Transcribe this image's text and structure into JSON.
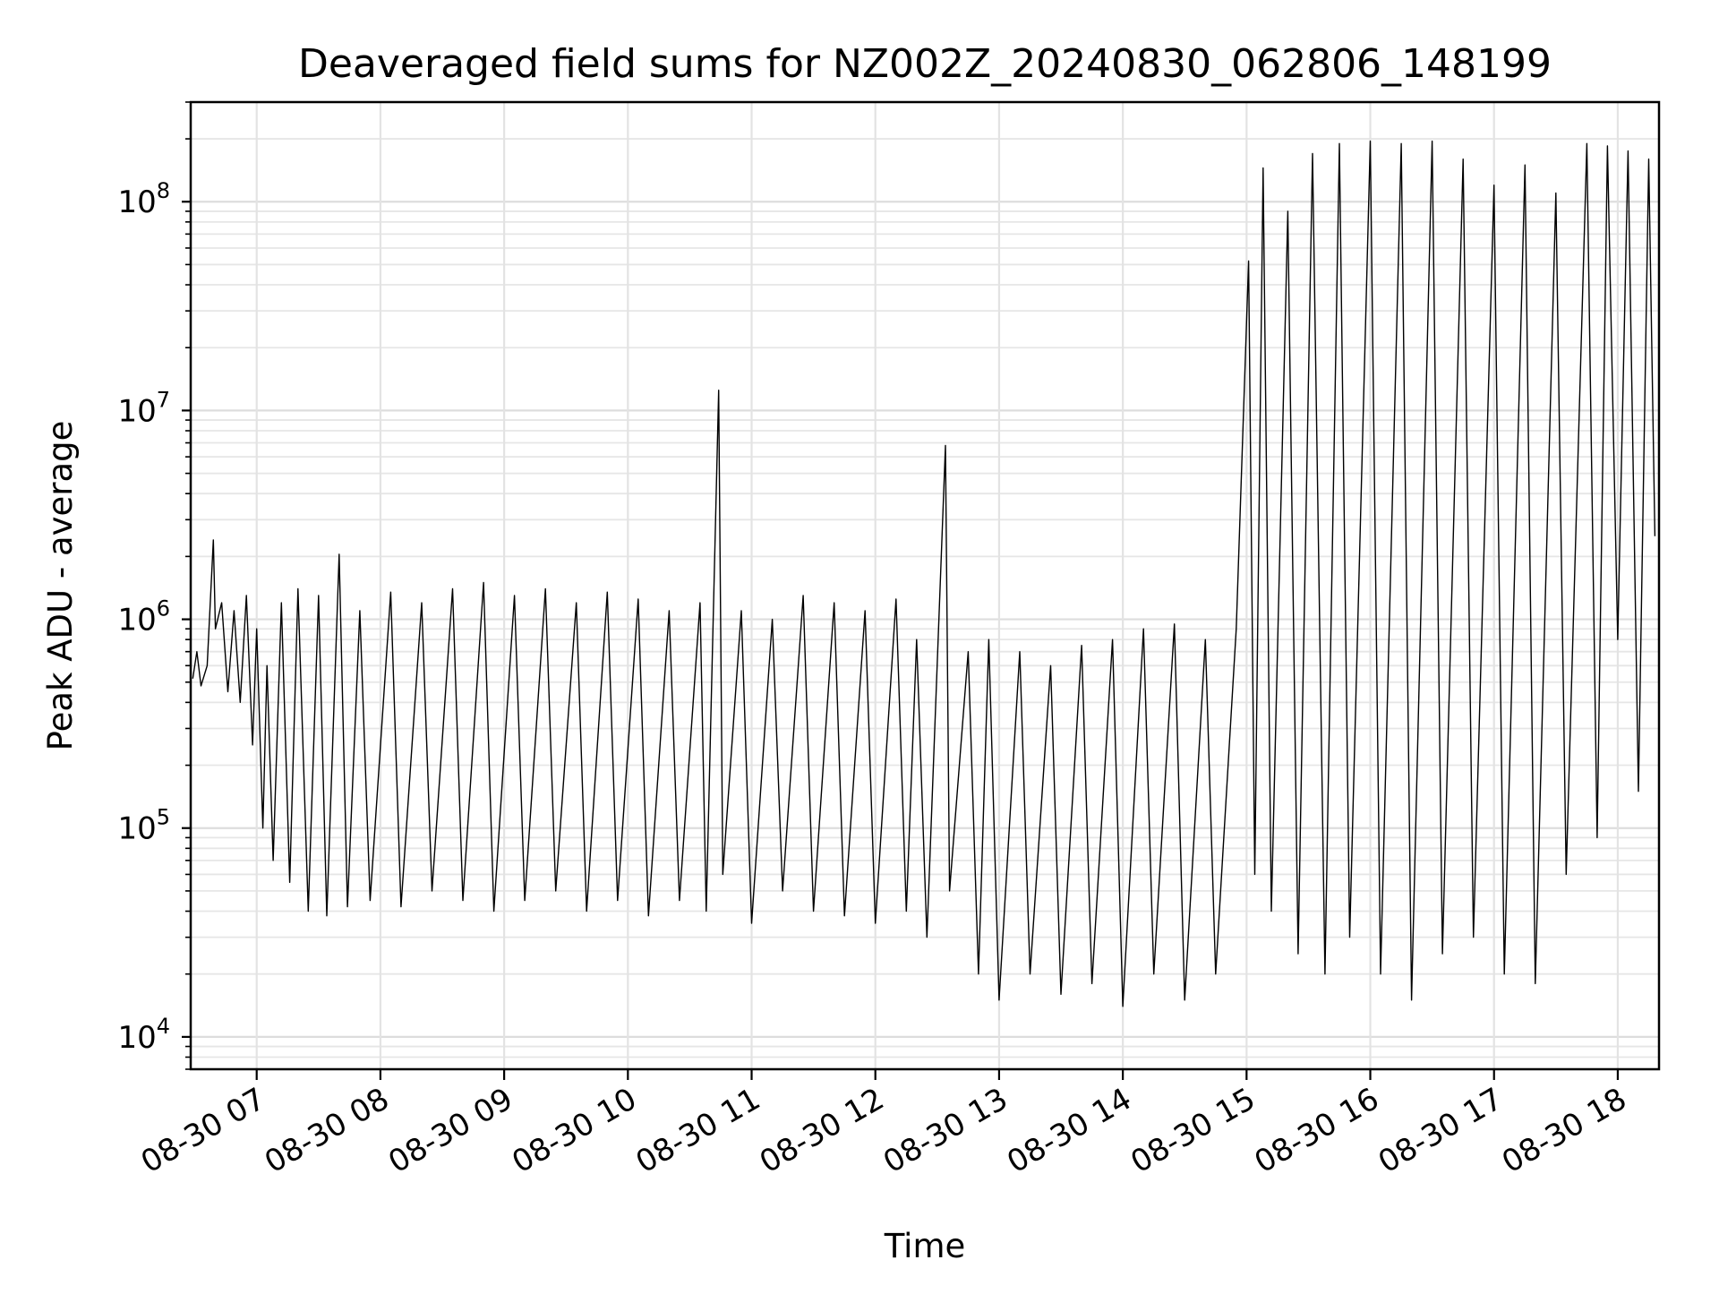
{
  "chart_data": {
    "type": "line",
    "title": "Deaveraged field sums for NZ002Z_20240830_062806_148199",
    "xlabel": "Time",
    "ylabel": "Peak ADU - average",
    "y_scale": "log",
    "grid": true,
    "x_range": [
      "08-30 06:28",
      "08-30 18:20"
    ],
    "ylim": [
      7000,
      300000000
    ],
    "x_ticks": [
      "08-30 07",
      "08-30 08",
      "08-30 09",
      "08-30 10",
      "08-30 11",
      "08-30 12",
      "08-30 13",
      "08-30 14",
      "08-30 15",
      "08-30 16",
      "08-30 17",
      "08-30 18"
    ],
    "y_ticks": [
      {
        "base": "10",
        "exp": "4"
      },
      {
        "base": "10",
        "exp": "5"
      },
      {
        "base": "10",
        "exp": "6"
      },
      {
        "base": "10",
        "exp": "7"
      },
      {
        "base": "10",
        "exp": "8"
      }
    ],
    "series": [
      {
        "color": "#000000",
        "points": [
          [
            "06:29",
            520000
          ],
          [
            "06:31",
            700000
          ],
          [
            "06:33",
            480000
          ],
          [
            "06:36",
            600000
          ],
          [
            "06:39",
            2400000
          ],
          [
            "06:40",
            900000
          ],
          [
            "06:43",
            1200000
          ],
          [
            "06:46",
            450000
          ],
          [
            "06:49",
            1100000
          ],
          [
            "06:52",
            400000
          ],
          [
            "06:55",
            1300000
          ],
          [
            "06:58",
            250000
          ],
          [
            "07:00",
            900000
          ],
          [
            "07:03",
            100000
          ],
          [
            "07:05",
            600000
          ],
          [
            "07:08",
            70000
          ],
          [
            "07:12",
            1200000
          ],
          [
            "07:16",
            55000
          ],
          [
            "07:20",
            1400000
          ],
          [
            "07:25",
            40000
          ],
          [
            "07:30",
            1300000
          ],
          [
            "07:34",
            38000
          ],
          [
            "07:40",
            2050000
          ],
          [
            "07:44",
            42000
          ],
          [
            "07:50",
            1100000
          ],
          [
            "07:55",
            45000
          ],
          [
            "08:05",
            1350000
          ],
          [
            "08:10",
            42000
          ],
          [
            "08:20",
            1200000
          ],
          [
            "08:25",
            50000
          ],
          [
            "08:35",
            1400000
          ],
          [
            "08:40",
            45000
          ],
          [
            "08:50",
            1500000
          ],
          [
            "08:55",
            40000
          ],
          [
            "09:05",
            1300000
          ],
          [
            "09:10",
            45000
          ],
          [
            "09:20",
            1400000
          ],
          [
            "09:25",
            50000
          ],
          [
            "09:35",
            1200000
          ],
          [
            "09:40",
            40000
          ],
          [
            "09:50",
            1350000
          ],
          [
            "09:55",
            45000
          ],
          [
            "10:05",
            1250000
          ],
          [
            "10:10",
            38000
          ],
          [
            "10:20",
            1100000
          ],
          [
            "10:25",
            45000
          ],
          [
            "10:35",
            1200000
          ],
          [
            "10:38",
            40000
          ],
          [
            "10:44",
            12500000
          ],
          [
            "10:46",
            60000
          ],
          [
            "10:55",
            1100000
          ],
          [
            "11:00",
            35000
          ],
          [
            "11:10",
            1000000
          ],
          [
            "11:15",
            50000
          ],
          [
            "11:25",
            1300000
          ],
          [
            "11:30",
            40000
          ],
          [
            "11:40",
            1200000
          ],
          [
            "11:45",
            38000
          ],
          [
            "11:55",
            1100000
          ],
          [
            "12:00",
            35000
          ],
          [
            "12:10",
            1250000
          ],
          [
            "12:15",
            40000
          ],
          [
            "12:20",
            800000
          ],
          [
            "12:25",
            30000
          ],
          [
            "12:34",
            6800000
          ],
          [
            "12:36",
            50000
          ],
          [
            "12:45",
            700000
          ],
          [
            "12:50",
            20000
          ],
          [
            "12:55",
            800000
          ],
          [
            "13:00",
            15000
          ],
          [
            "13:10",
            700000
          ],
          [
            "13:15",
            20000
          ],
          [
            "13:25",
            600000
          ],
          [
            "13:30",
            16000
          ],
          [
            "13:40",
            750000
          ],
          [
            "13:45",
            18000
          ],
          [
            "13:55",
            800000
          ],
          [
            "14:00",
            14000
          ],
          [
            "14:10",
            900000
          ],
          [
            "14:15",
            20000
          ],
          [
            "14:25",
            950000
          ],
          [
            "14:30",
            15000
          ],
          [
            "14:40",
            800000
          ],
          [
            "14:45",
            20000
          ],
          [
            "14:55",
            900000
          ],
          [
            "15:01",
            52000000
          ],
          [
            "15:04",
            60000
          ],
          [
            "15:08",
            145000000
          ],
          [
            "15:12",
            40000
          ],
          [
            "15:20",
            90000000
          ],
          [
            "15:25",
            25000
          ],
          [
            "15:32",
            170000000
          ],
          [
            "15:38",
            20000
          ],
          [
            "15:45",
            190000000
          ],
          [
            "15:50",
            30000
          ],
          [
            "16:00",
            195000000
          ],
          [
            "16:05",
            20000
          ],
          [
            "16:15",
            190000000
          ],
          [
            "16:20",
            15000
          ],
          [
            "16:30",
            195000000
          ],
          [
            "16:35",
            25000
          ],
          [
            "16:45",
            160000000
          ],
          [
            "16:50",
            30000
          ],
          [
            "17:00",
            120000000
          ],
          [
            "17:05",
            20000
          ],
          [
            "17:15",
            150000000
          ],
          [
            "17:20",
            18000
          ],
          [
            "17:30",
            110000000
          ],
          [
            "17:35",
            60000
          ],
          [
            "17:45",
            190000000
          ],
          [
            "17:50",
            90000
          ],
          [
            "17:55",
            185000000
          ],
          [
            "18:00",
            800000
          ],
          [
            "18:05",
            175000000
          ],
          [
            "18:10",
            150000
          ],
          [
            "18:15",
            160000000
          ],
          [
            "18:18",
            2500000
          ]
        ]
      }
    ]
  }
}
